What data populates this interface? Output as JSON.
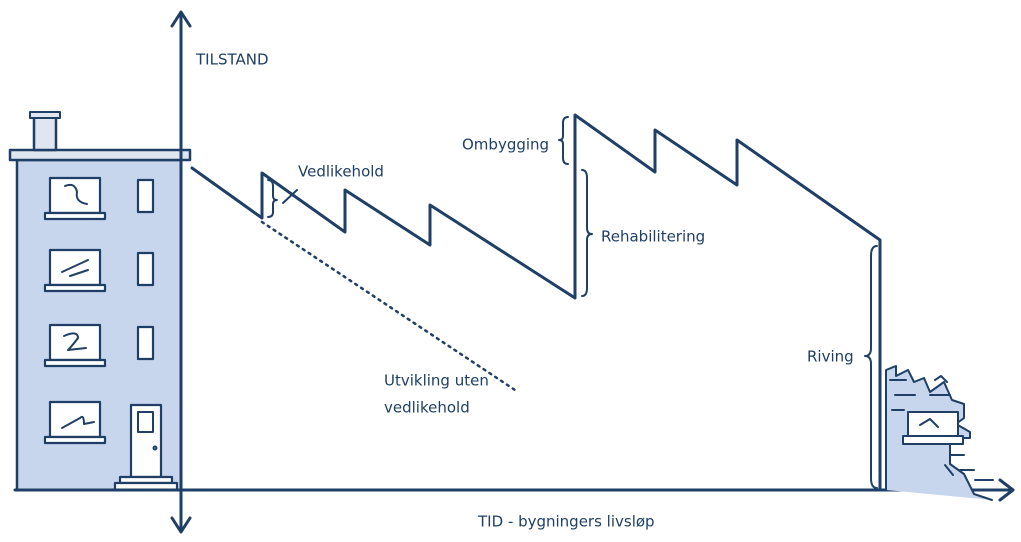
{
  "y_axis_label": "TILSTAND",
  "x_axis_label": "TID - bygningers livsløp",
  "annotations": {
    "maintenance": "Vedlikehold",
    "conversion": "Ombygging",
    "rehabilitation": "Rehabilitering",
    "no_maintenance": [
      "Utvikling uten",
      "vedlikehold"
    ],
    "demolition": "Riving"
  }
}
